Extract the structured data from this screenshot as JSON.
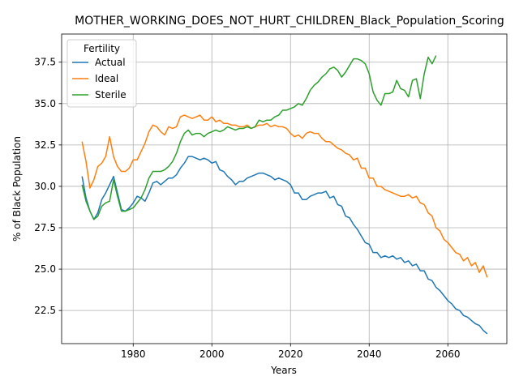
{
  "chart_data": {
    "type": "line",
    "title": "MOTHER_WORKING_DOES_NOT_HURT_CHILDREN_Black_Population_Scoring",
    "xlabel": "Years",
    "ylabel": "% of Black Population",
    "xlim": [
      1961.8,
      2075
    ],
    "ylim": [
      20.5,
      39.2
    ],
    "xticks": [
      1980,
      2000,
      2020,
      2040,
      2060
    ],
    "yticks": [
      22.5,
      25.0,
      27.5,
      30.0,
      32.5,
      35.0,
      37.5
    ],
    "ytick_labels": [
      "22.5",
      "25.0",
      "27.5",
      "30.0",
      "32.5",
      "35.0",
      "37.5"
    ],
    "grid": true,
    "legend": {
      "title": "Fertility",
      "location": "upper-left"
    },
    "series": [
      {
        "name": "Actual",
        "color": "#1f77b4",
        "x": [
          1967,
          1968,
          1969,
          1970,
          1971,
          1972,
          1973,
          1974,
          1975,
          1976,
          1977,
          1978,
          1979,
          1980,
          1981,
          1982,
          1983,
          1984,
          1985,
          1986,
          1987,
          1988,
          1989,
          1990,
          1991,
          1992,
          1993,
          1994,
          1995,
          1996,
          1997,
          1998,
          1999,
          2000,
          2001,
          2002,
          2003,
          2004,
          2005,
          2006,
          2007,
          2008,
          2009,
          2010,
          2011,
          2012,
          2013,
          2014,
          2015,
          2016,
          2017,
          2018,
          2019,
          2020,
          2021,
          2022,
          2023,
          2024,
          2025,
          2026,
          2027,
          2028,
          2029,
          2030,
          2031,
          2032,
          2033,
          2034,
          2035,
          2036,
          2037,
          2038,
          2039,
          2040,
          2041,
          2042,
          2043,
          2044,
          2045,
          2046,
          2047,
          2048,
          2049,
          2050,
          2051,
          2052,
          2053,
          2054,
          2055,
          2056,
          2057,
          2058,
          2059,
          2060,
          2061,
          2062,
          2063,
          2064,
          2065,
          2066,
          2067,
          2068,
          2069,
          2070
        ],
        "y": [
          30.6,
          29.3,
          28.5,
          28.0,
          28.4,
          29.2,
          29.6,
          30.1,
          30.6,
          29.6,
          28.6,
          28.5,
          28.7,
          29.0,
          29.4,
          29.3,
          29.1,
          29.6,
          30.2,
          30.3,
          30.1,
          30.3,
          30.5,
          30.5,
          30.7,
          31.1,
          31.4,
          31.8,
          31.8,
          31.7,
          31.6,
          31.7,
          31.6,
          31.4,
          31.5,
          31.0,
          30.9,
          30.6,
          30.4,
          30.1,
          30.3,
          30.3,
          30.5,
          30.6,
          30.7,
          30.8,
          30.8,
          30.7,
          30.6,
          30.4,
          30.5,
          30.4,
          30.3,
          30.1,
          29.6,
          29.6,
          29.2,
          29.2,
          29.4,
          29.5,
          29.6,
          29.6,
          29.7,
          29.3,
          29.4,
          28.9,
          28.8,
          28.2,
          28.1,
          27.7,
          27.4,
          27.0,
          26.6,
          26.5,
          26.0,
          26.0,
          25.7,
          25.8,
          25.7,
          25.8,
          25.6,
          25.7,
          25.4,
          25.5,
          25.2,
          25.3,
          24.9,
          24.9,
          24.4,
          24.3,
          23.9,
          23.7,
          23.4,
          23.1,
          22.9,
          22.6,
          22.5,
          22.2,
          22.1,
          21.9,
          21.7,
          21.6,
          21.3,
          21.1
        ]
      },
      {
        "name": "Ideal",
        "color": "#ff7f0e",
        "x": [
          1967,
          1968,
          1969,
          1970,
          1971,
          1972,
          1973,
          1974,
          1975,
          1976,
          1977,
          1978,
          1979,
          1980,
          1981,
          1982,
          1983,
          1984,
          1985,
          1986,
          1987,
          1988,
          1989,
          1990,
          1991,
          1992,
          1993,
          1994,
          1995,
          1996,
          1997,
          1998,
          1999,
          2000,
          2001,
          2002,
          2003,
          2004,
          2005,
          2006,
          2007,
          2008,
          2009,
          2010,
          2011,
          2012,
          2013,
          2014,
          2015,
          2016,
          2017,
          2018,
          2019,
          2020,
          2021,
          2022,
          2023,
          2024,
          2025,
          2026,
          2027,
          2028,
          2029,
          2030,
          2031,
          2032,
          2033,
          2034,
          2035,
          2036,
          2037,
          2038,
          2039,
          2040,
          2041,
          2042,
          2043,
          2044,
          2045,
          2046,
          2047,
          2048,
          2049,
          2050,
          2051,
          2052,
          2053,
          2054,
          2055,
          2056,
          2057,
          2058,
          2059,
          2060,
          2061,
          2062,
          2063,
          2064,
          2065,
          2066,
          2067,
          2068,
          2069,
          2070
        ],
        "y": [
          32.7,
          31.5,
          29.9,
          30.4,
          31.2,
          31.4,
          31.8,
          33.0,
          31.8,
          31.2,
          30.9,
          30.9,
          31.1,
          31.6,
          31.6,
          32.1,
          32.6,
          33.3,
          33.7,
          33.6,
          33.3,
          33.1,
          33.6,
          33.5,
          33.6,
          34.2,
          34.3,
          34.2,
          34.1,
          34.2,
          34.3,
          34.0,
          34.0,
          34.2,
          33.9,
          34.0,
          33.8,
          33.8,
          33.7,
          33.7,
          33.6,
          33.6,
          33.7,
          33.5,
          33.6,
          33.7,
          33.7,
          33.8,
          33.6,
          33.7,
          33.6,
          33.6,
          33.5,
          33.2,
          33.0,
          33.1,
          32.9,
          33.2,
          33.3,
          33.2,
          33.2,
          32.9,
          32.7,
          32.7,
          32.5,
          32.3,
          32.2,
          32.0,
          31.9,
          31.6,
          31.7,
          31.1,
          31.1,
          30.5,
          30.5,
          30.0,
          30.0,
          29.8,
          29.7,
          29.6,
          29.5,
          29.4,
          29.4,
          29.5,
          29.3,
          29.4,
          29.0,
          28.9,
          28.4,
          28.2,
          27.5,
          27.3,
          26.8,
          26.6,
          26.3,
          26.0,
          25.9,
          25.5,
          25.7,
          25.2,
          25.4,
          24.8,
          25.2,
          24.5
        ]
      },
      {
        "name": "Sterile",
        "color": "#2ca02c",
        "x": [
          1967,
          1968,
          1969,
          1970,
          1971,
          1972,
          1973,
          1974,
          1975,
          1976,
          1977,
          1978,
          1979,
          1980,
          1981,
          1982,
          1983,
          1984,
          1985,
          1986,
          1987,
          1988,
          1989,
          1990,
          1991,
          1992,
          1993,
          1994,
          1995,
          1996,
          1997,
          1998,
          1999,
          2000,
          2001,
          2002,
          2003,
          2004,
          2005,
          2006,
          2007,
          2008,
          2009,
          2010,
          2011,
          2012,
          2013,
          2014,
          2015,
          2016,
          2017,
          2018,
          2019,
          2020,
          2021,
          2022,
          2023,
          2024,
          2025,
          2026,
          2027,
          2028,
          2029,
          2030,
          2031,
          2032,
          2033,
          2034,
          2035,
          2036,
          2037,
          2038,
          2039,
          2040,
          2041,
          2042,
          2043,
          2044,
          2045,
          2046,
          2047,
          2048,
          2049,
          2050,
          2051,
          2052,
          2053,
          2054,
          2055,
          2056,
          2057
        ],
        "y": [
          30.1,
          29.1,
          28.5,
          28.0,
          28.2,
          28.8,
          29.0,
          29.1,
          30.4,
          29.4,
          28.5,
          28.5,
          28.6,
          28.7,
          29.0,
          29.3,
          29.8,
          30.5,
          30.9,
          30.9,
          30.9,
          31.0,
          31.2,
          31.5,
          32.0,
          32.7,
          33.2,
          33.4,
          33.1,
          33.2,
          33.2,
          33.0,
          33.2,
          33.3,
          33.4,
          33.3,
          33.4,
          33.6,
          33.5,
          33.4,
          33.5,
          33.5,
          33.6,
          33.5,
          33.6,
          34.0,
          33.9,
          34.0,
          34.0,
          34.2,
          34.3,
          34.6,
          34.6,
          34.7,
          34.8,
          35.0,
          34.9,
          35.3,
          35.8,
          36.1,
          36.3,
          36.6,
          36.8,
          37.1,
          37.2,
          37.0,
          36.6,
          36.9,
          37.3,
          37.7,
          37.7,
          37.6,
          37.4,
          36.8,
          35.7,
          35.2,
          34.9,
          35.6,
          35.6,
          35.7,
          36.4,
          35.9,
          35.8,
          35.4,
          36.4,
          36.5,
          35.3,
          36.8,
          37.8,
          37.4,
          37.9
        ]
      }
    ]
  }
}
